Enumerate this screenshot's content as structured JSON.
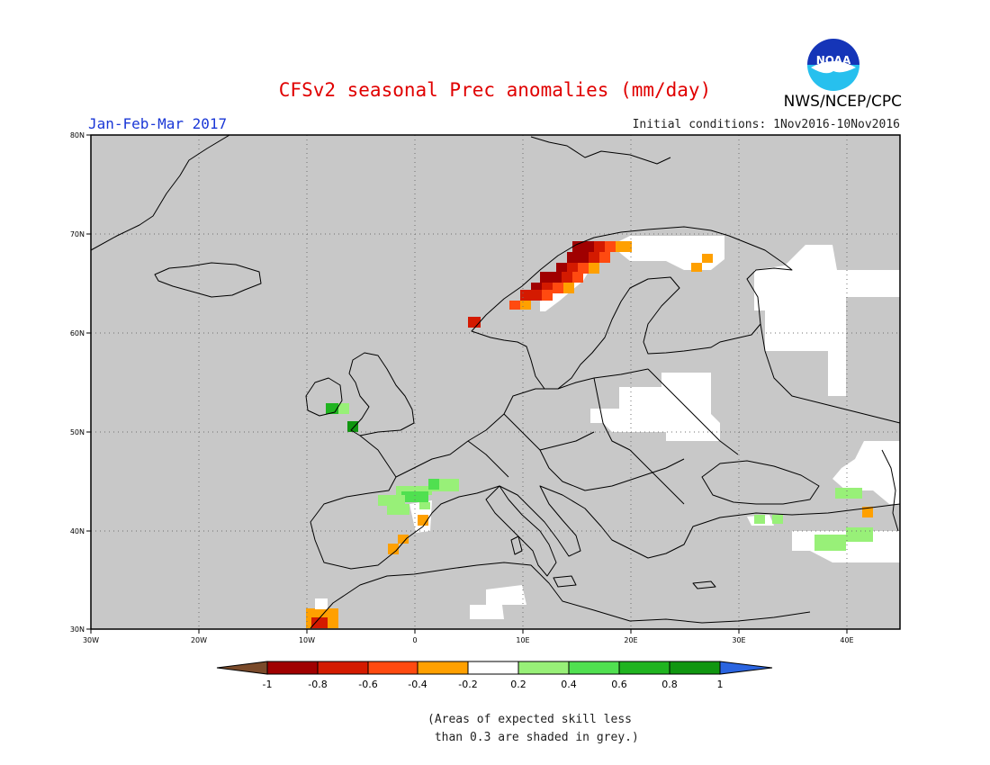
{
  "header": {
    "title": "CFSv2 seasonal Prec anomalies (mm/day)",
    "period": "Jan-Feb-Mar 2017",
    "initial_conditions": "Initial conditions: 1Nov2016-10Nov2016",
    "agency": "NWS/NCEP/CPC",
    "logo_text": "NOAA"
  },
  "map": {
    "lat_ticks": [
      "80N",
      "70N",
      "60N",
      "50N",
      "40N",
      "30N"
    ],
    "lon_ticks": [
      "30W",
      "20W",
      "10W",
      "0",
      "10E",
      "20E",
      "30E",
      "40E"
    ],
    "colors": {
      "no_skill": "#c8c8c8",
      "near_zero": "#ffffff",
      "coast": "#000000"
    }
  },
  "colorbar": {
    "labels": [
      "-1",
      "-0.8",
      "-0.6",
      "-0.4",
      "-0.2",
      "0.2",
      "0.4",
      "0.6",
      "0.8",
      "1"
    ],
    "colors": [
      "#7a4a2a",
      "#a00000",
      "#d41a00",
      "#ff4a10",
      "#ffa000",
      "#ffffff",
      "#98f078",
      "#50e050",
      "#20b420",
      "#109610",
      "#2a64e0"
    ]
  },
  "note": "(Areas of expected skill less\n than 0.3 are shaded in grey.)"
}
